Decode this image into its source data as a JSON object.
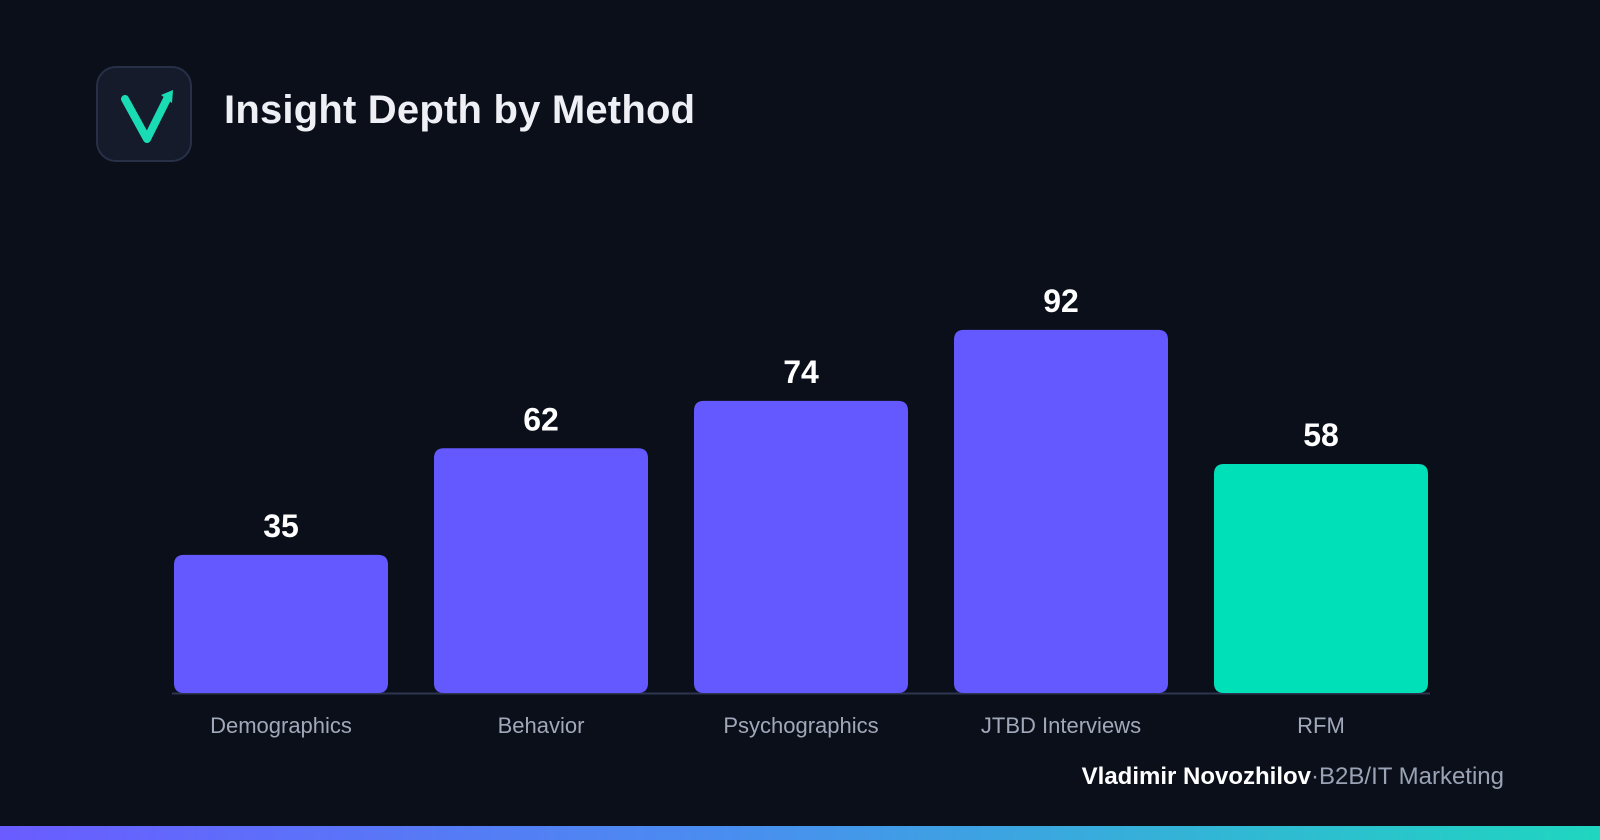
{
  "header": {
    "title": "Insight Depth by Method",
    "logo_icon": "checkmark-arrow-logo-icon",
    "logo_color": "#19dcb4"
  },
  "footer": {
    "author": "Vladimir Novozhilov",
    "separator": "·",
    "role": "B2B/IT Marketing"
  },
  "colors": {
    "background": "#0b0f1a",
    "bar_primary": "#6459ff",
    "bar_highlight": "#00e0b8",
    "axis_label": "#a0a8ba",
    "value_label": "#ffffff"
  },
  "chart_data": {
    "type": "bar",
    "title": "Insight Depth by Method",
    "xlabel": "",
    "ylabel": "",
    "categories": [
      "Demographics",
      "Behavior",
      "Psychographics",
      "JTBD Interviews",
      "RFM"
    ],
    "values": [
      35,
      62,
      74,
      92,
      58
    ],
    "highlight_category": "RFM",
    "ylim": [
      0,
      100
    ],
    "grid": false,
    "legend": "none",
    "data_labels": [
      "35",
      "62",
      "74",
      "92",
      "58"
    ]
  }
}
